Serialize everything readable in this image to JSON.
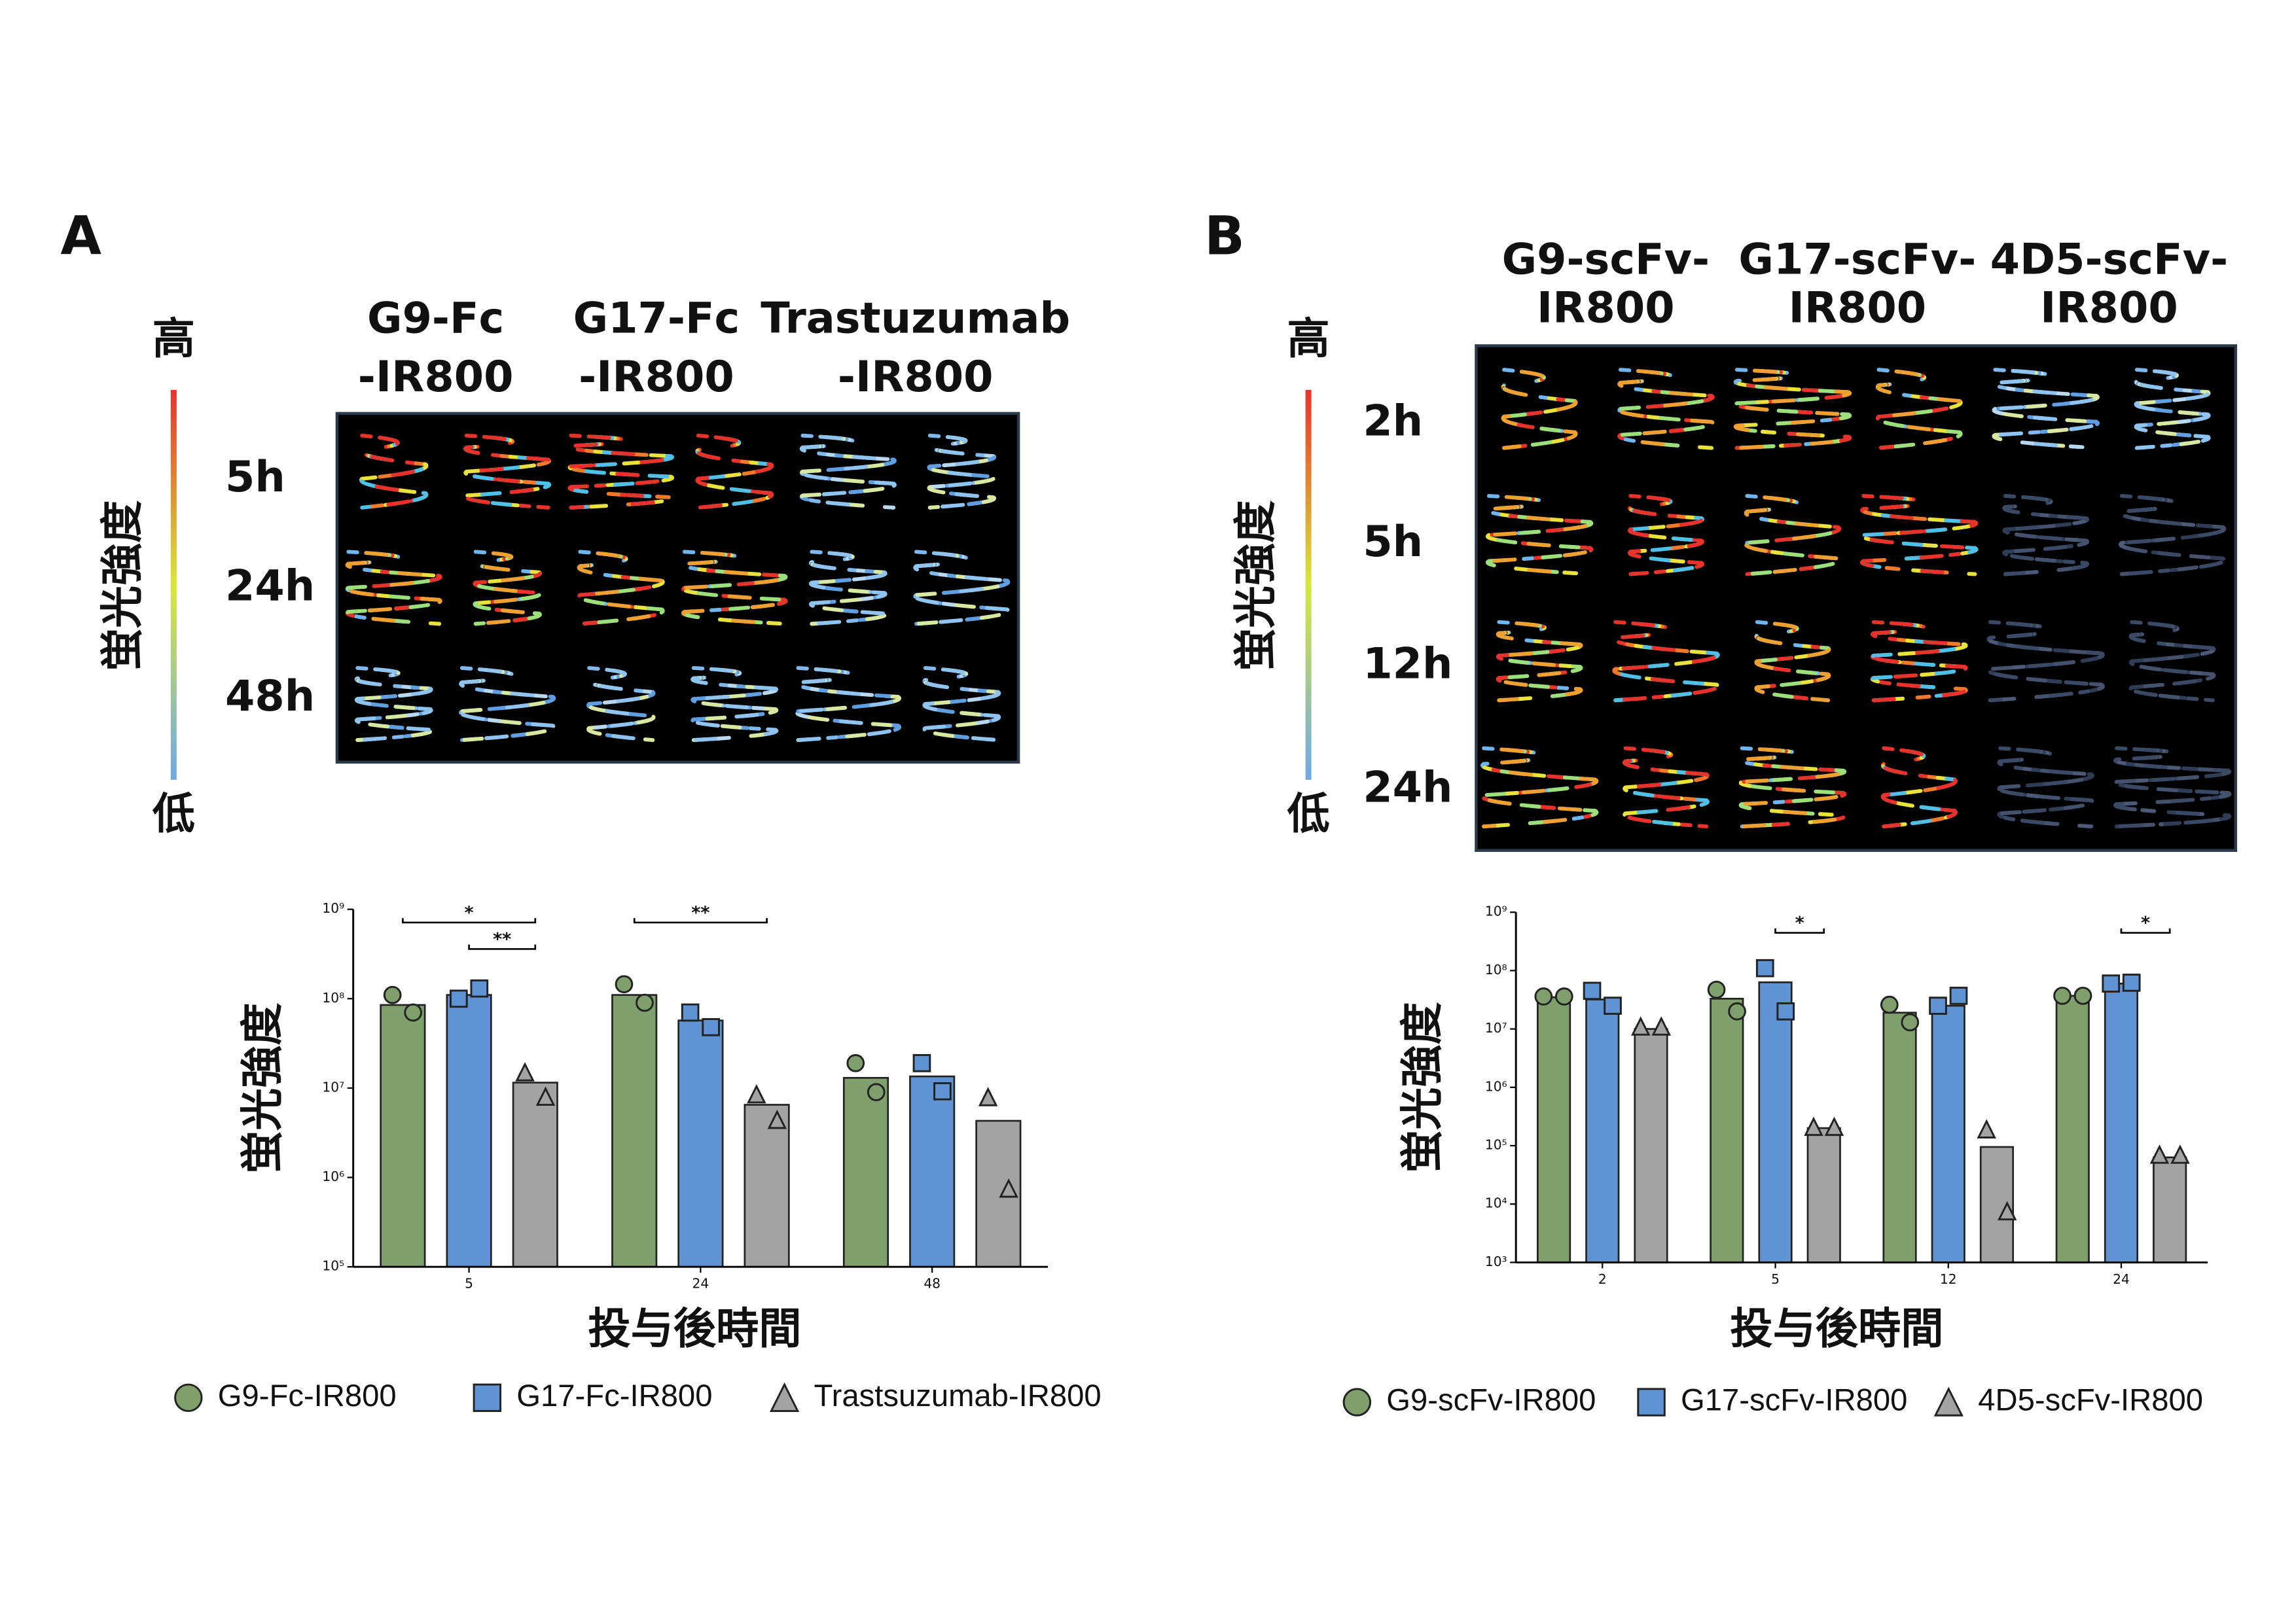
{
  "panels": [
    {
      "label": "A",
      "columns": [
        [
          "G9-Fc",
          "-IR800"
        ],
        [
          "G17-Fc",
          "-IR800"
        ],
        [
          "Trastuzumab",
          "-IR800"
        ]
      ],
      "rows": [
        "5h",
        "24h",
        "48h"
      ],
      "colorbar": {
        "high": "高",
        "low": "低",
        "label": "蛍光強度"
      }
    },
    {
      "label": "B",
      "columns": [
        [
          "G9-scFv-",
          "IR800"
        ],
        [
          "G17-scFv-",
          "IR800"
        ],
        [
          "4D5-scFv-",
          "IR800"
        ]
      ],
      "rows": [
        "2h",
        "5h",
        "12h",
        "24h"
      ],
      "colorbar": {
        "high": "高",
        "low": "低",
        "label": "蛍光強度"
      }
    }
  ],
  "chart_data": [
    {
      "type": "bar",
      "y_label": "蛍光強度",
      "x_label": "投与後時間",
      "log_scale": true,
      "categories": [
        "5",
        "24",
        "48"
      ],
      "ylim": [
        100000,
        1000000000
      ],
      "yticks": [
        {
          "value": 100000,
          "label": "10⁵"
        },
        {
          "value": 1000000,
          "label": "10⁶"
        },
        {
          "value": 10000000,
          "label": "10⁷"
        },
        {
          "value": 100000000,
          "label": "10⁸"
        },
        {
          "value": 1000000000,
          "label": "10⁹"
        }
      ],
      "series": [
        {
          "name": "G9-Fc-IR800",
          "color": "#7f9f6c",
          "marker": "circle",
          "values": [
            85000000,
            110000000,
            13000000
          ],
          "points": [
            [
              110000000,
              70000000
            ],
            [
              145000000,
              90000000
            ],
            [
              19000000,
              9000000
            ]
          ]
        },
        {
          "name": "G17-Fc-IR800",
          "color": "#5f93d3",
          "marker": "square",
          "values": [
            110000000,
            57000000,
            13500000
          ],
          "points": [
            [
              100000000,
              130000000
            ],
            [
              70000000,
              48000000
            ],
            [
              19000000,
              9200000
            ]
          ]
        },
        {
          "name": "Trastsuzumab-IR800",
          "color": "#a3a3a3",
          "marker": "triangle",
          "values": [
            11500000,
            6500000,
            4300000
          ],
          "points": [
            [
              15000000,
              8000000
            ],
            [
              8500000,
              4400000
            ],
            [
              7900000,
              750000
            ]
          ]
        }
      ],
      "significance": [
        {
          "label": "*",
          "category": 0,
          "from": 0,
          "to": 2
        },
        {
          "label": "**",
          "category": 0,
          "from": 1,
          "to": 2
        },
        {
          "label": "**",
          "category": 1,
          "from": 0,
          "to": 2
        }
      ]
    },
    {
      "type": "bar",
      "y_label": "蛍光強度",
      "x_label": "投与後時間",
      "log_scale": true,
      "categories": [
        "2",
        "5",
        "12",
        "24"
      ],
      "ylim": [
        1000,
        1000000000
      ],
      "yticks": [
        {
          "value": 1000,
          "label": "10³"
        },
        {
          "value": 10000,
          "label": "10⁴"
        },
        {
          "value": 100000,
          "label": "10⁵"
        },
        {
          "value": 1000000,
          "label": "10⁶"
        },
        {
          "value": 10000000,
          "label": "10⁷"
        },
        {
          "value": 100000000,
          "label": "10⁸"
        },
        {
          "value": 1000000000,
          "label": "10⁹"
        }
      ],
      "series": [
        {
          "name": "G9-scFv-IR800",
          "color": "#7f9f6c",
          "marker": "circle",
          "values": [
            35000000,
            33000000,
            19000000,
            37000000
          ],
          "points": [
            [
              36000000,
              36000000
            ],
            [
              47000000,
              20000000
            ],
            [
              26000000,
              13000000
            ],
            [
              37000000,
              37000000
            ]
          ]
        },
        {
          "name": "G17-scFv-IR800",
          "color": "#5f93d3",
          "marker": "square",
          "values": [
            32000000,
            63000000,
            25000000,
            60000000
          ],
          "points": [
            [
              45000000,
              25000000
            ],
            [
              110000000,
              20000000
            ],
            [
              25000000,
              37000000
            ],
            [
              60000000,
              62000000
            ]
          ]
        },
        {
          "name": "4D5-scFv-IR800",
          "color": "#a3a3a3",
          "marker": "triangle",
          "values": [
            10000000,
            200000,
            95000,
            63000
          ],
          "points": [
            [
              11000000,
              11000000
            ],
            [
              210000,
              210000
            ],
            [
              190000,
              7500
            ],
            [
              70000,
              70000
            ]
          ]
        }
      ],
      "significance": [
        {
          "label": "*",
          "category": 1,
          "from": 1,
          "to": 2
        },
        {
          "label": "*",
          "category": 3,
          "from": 1,
          "to": 2
        }
      ]
    }
  ]
}
